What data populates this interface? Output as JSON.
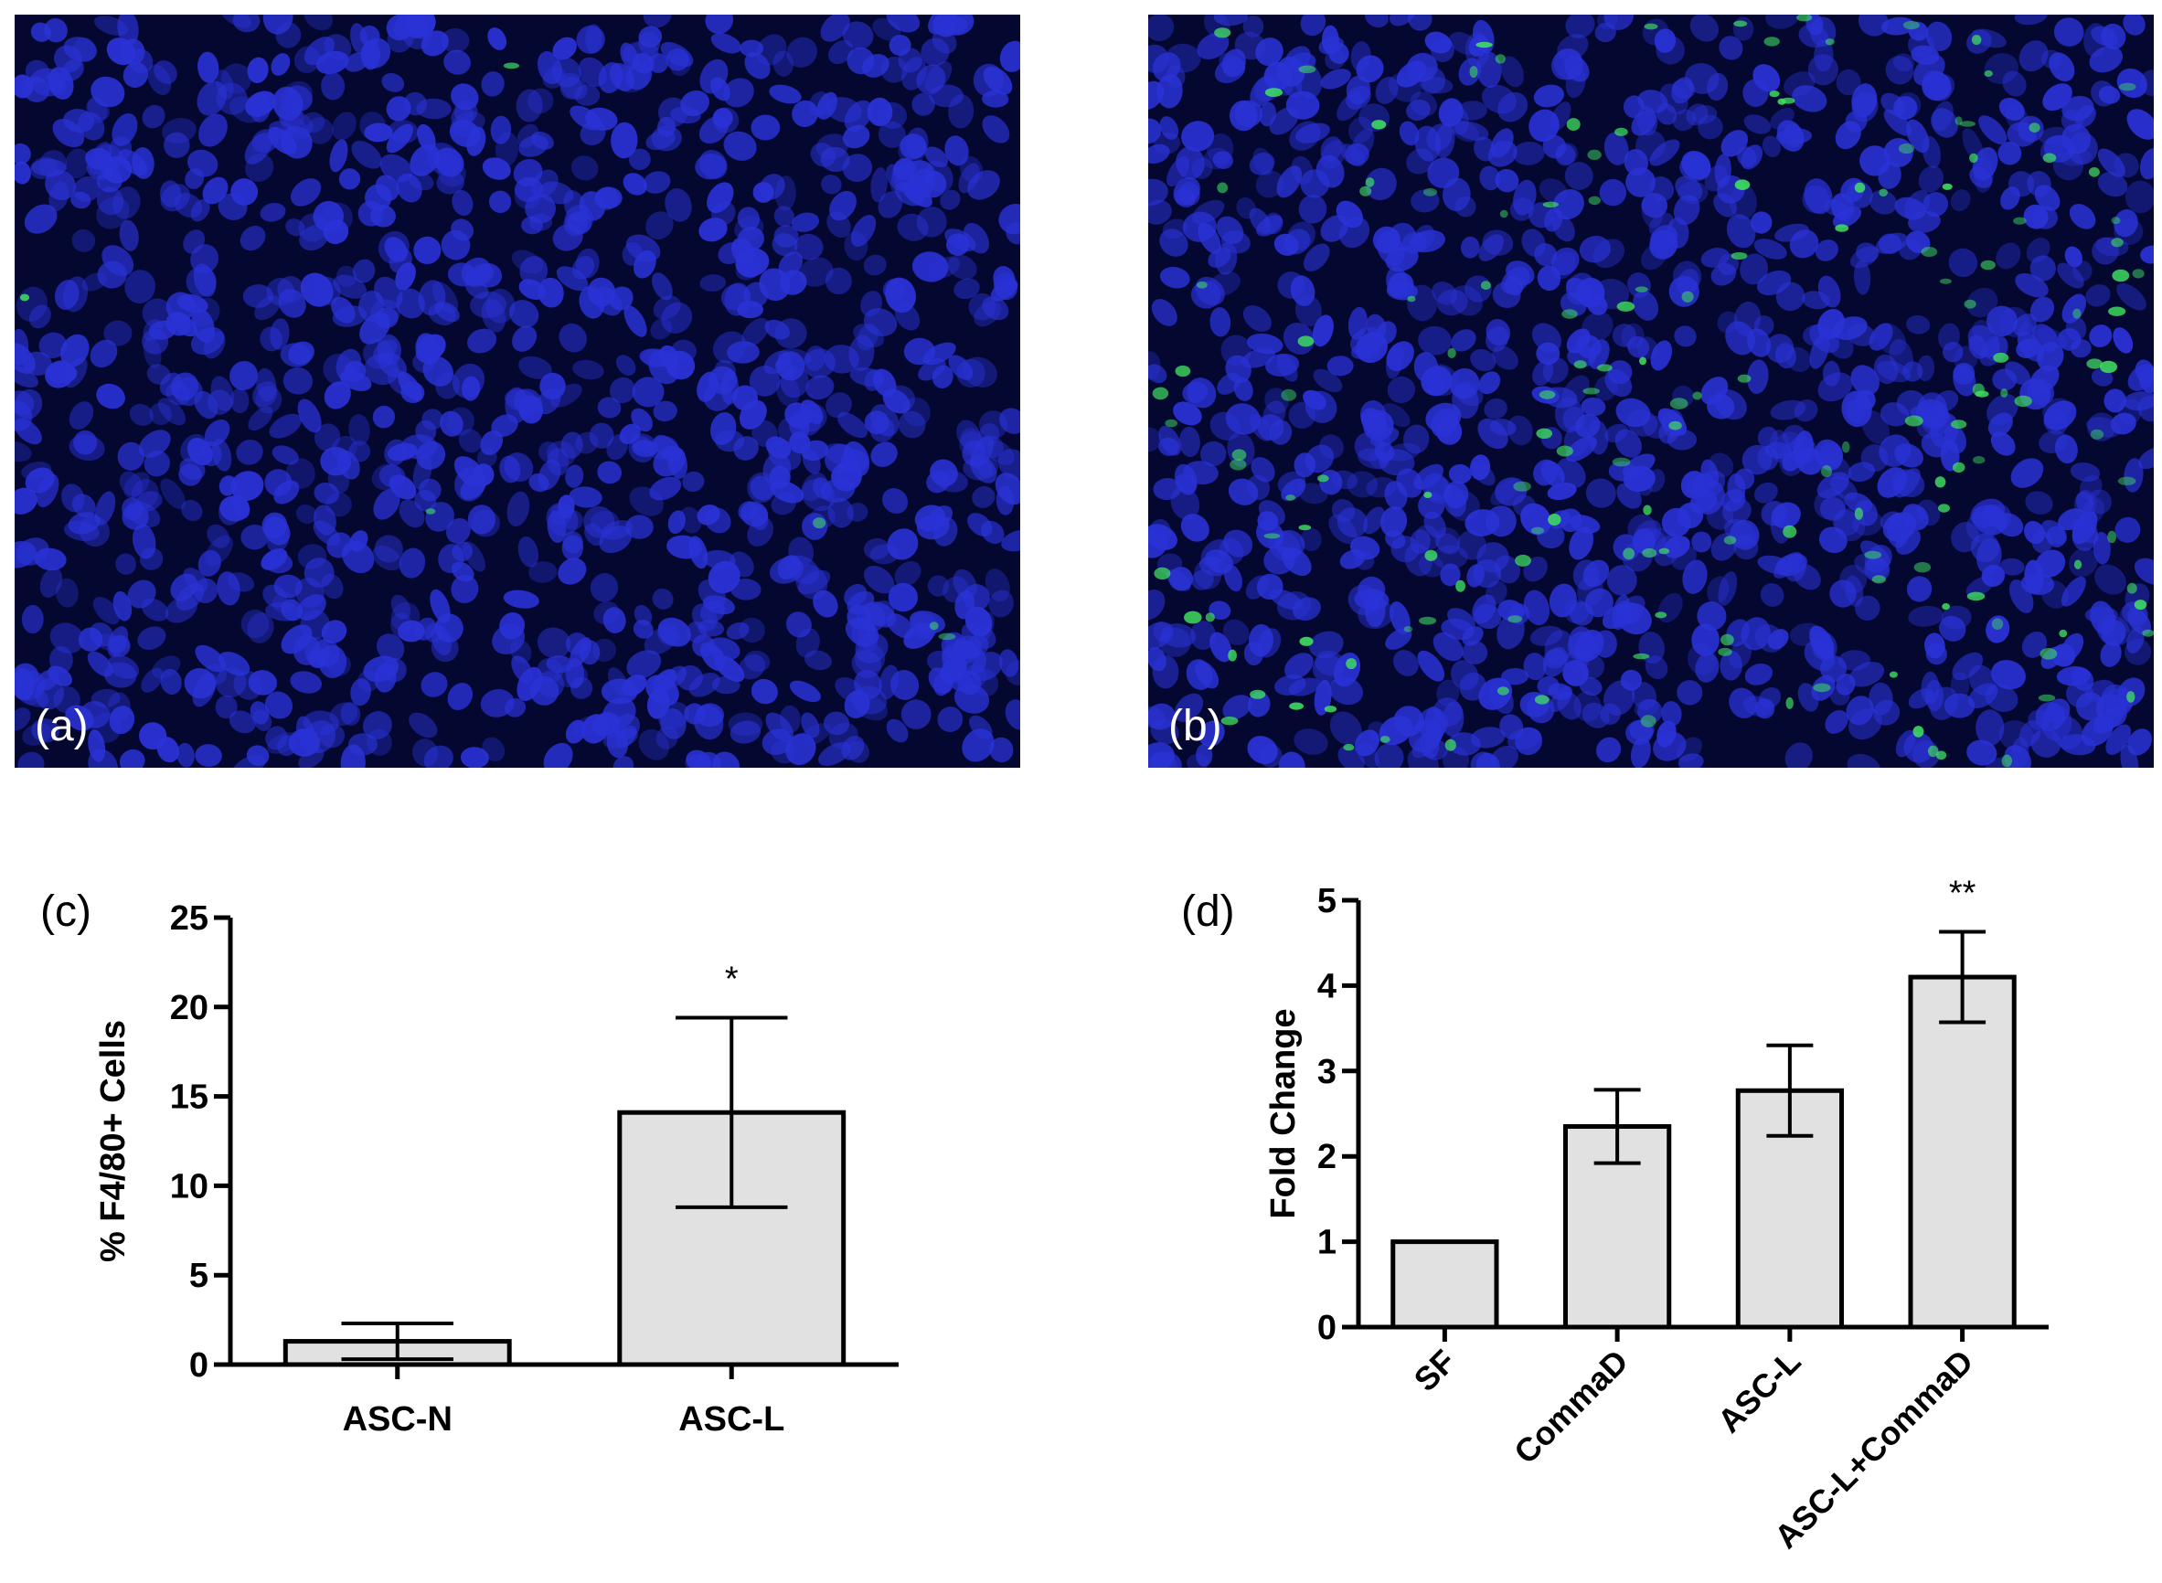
{
  "panels": {
    "a": {
      "letter": "(a)"
    },
    "b": {
      "letter": "(b)"
    },
    "c": {
      "letter": "(c)"
    },
    "d": {
      "letter": "(d)"
    }
  },
  "colors": {
    "bar_fill": "#e1e1e1",
    "axis": "#000000",
    "micro_background": "#040830",
    "nucleus_blue": "#2a32d6",
    "stain_green": "#40e060"
  },
  "chart_data": [
    {
      "id": "c",
      "type": "bar",
      "categories": [
        "ASC-N",
        "ASC-L"
      ],
      "values": [
        1.3,
        14.1
      ],
      "errors": [
        1.0,
        5.3
      ],
      "significance": [
        "",
        "*"
      ],
      "ylabel": "% F4/80+ Cells",
      "xlabel": "",
      "ylim": [
        0,
        25
      ],
      "yticks": [
        0,
        5,
        10,
        15,
        20,
        25
      ],
      "grid": false,
      "legend": "none"
    },
    {
      "id": "d",
      "type": "bar",
      "categories": [
        "SF",
        "CommaD",
        "ASC-L",
        "ASC-L+CommaD"
      ],
      "values": [
        1.0,
        2.35,
        2.77,
        4.1
      ],
      "errors": [
        0.0,
        0.43,
        0.53,
        0.53
      ],
      "significance": [
        "",
        "",
        "",
        "**"
      ],
      "ylabel": "Fold Change",
      "xlabel": "",
      "ylim": [
        0,
        5
      ],
      "yticks": [
        0,
        1,
        2,
        3,
        4,
        5
      ],
      "grid": false,
      "legend": "none"
    }
  ]
}
